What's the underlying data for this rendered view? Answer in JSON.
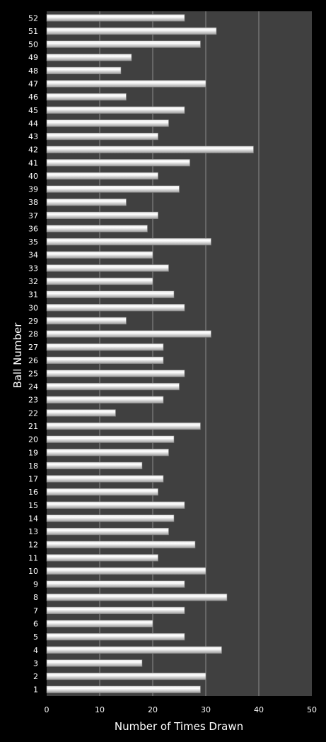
{
  "chart_data": {
    "type": "bar",
    "orientation": "horizontal",
    "title": "",
    "xlabel": "Number of Times Drawn",
    "ylabel": "Ball Number",
    "xlim": [
      0,
      50
    ],
    "x_ticks": [
      0,
      10,
      20,
      30,
      40,
      50
    ],
    "grid": "vertical",
    "legend": "none",
    "categories": [
      "1",
      "2",
      "3",
      "4",
      "5",
      "6",
      "7",
      "8",
      "9",
      "10",
      "11",
      "12",
      "13",
      "14",
      "15",
      "16",
      "17",
      "18",
      "19",
      "20",
      "21",
      "22",
      "23",
      "24",
      "25",
      "26",
      "27",
      "28",
      "29",
      "30",
      "31",
      "32",
      "33",
      "34",
      "35",
      "36",
      "37",
      "38",
      "39",
      "40",
      "41",
      "42",
      "43",
      "44",
      "45",
      "46",
      "47",
      "48",
      "49",
      "50",
      "51",
      "52"
    ],
    "values": [
      29,
      30,
      18,
      33,
      26,
      20,
      26,
      34,
      26,
      30,
      21,
      28,
      23,
      24,
      26,
      21,
      22,
      18,
      23,
      24,
      29,
      13,
      22,
      25,
      26,
      22,
      22,
      31,
      15,
      26,
      24,
      20,
      23,
      20,
      31,
      19,
      21,
      15,
      25,
      21,
      27,
      39,
      21,
      23,
      26,
      15,
      30,
      14,
      16,
      29,
      32,
      26
    ],
    "colors": {
      "background": "#000000",
      "plot_area": "#404040",
      "gridline": "#8c8c8c",
      "bar_light": "#ffffff",
      "bar_dark": "#a6a6a6",
      "text": "#ffffff"
    }
  }
}
